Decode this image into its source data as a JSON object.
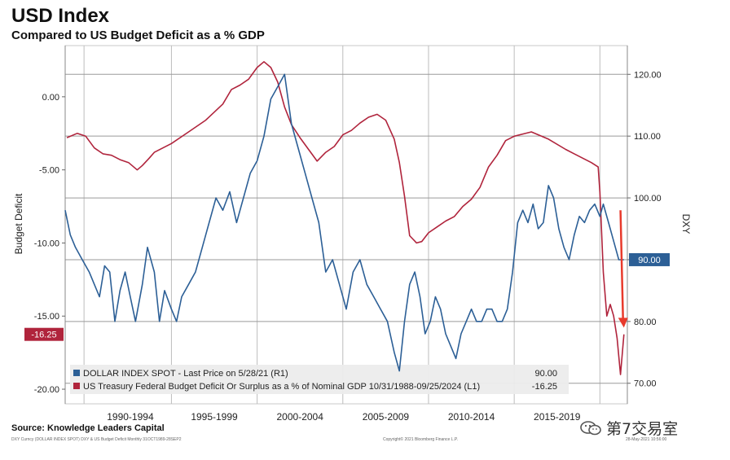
{
  "title": "USD Index",
  "subtitle": "Compared to US Budget Deficit as a % GDP",
  "source": "Source: Knowledge Leaders Capital",
  "footer_left": "DXY Curncy (DOLLAR INDEX SPOT) DXY & US Budget Deficit  Monthly 31OCT1989-28SEP2",
  "footer_center": "Copyright© 2021 Bloomberg Finance L.P.",
  "footer_right": "28-May-2021 10:56:00",
  "watermark": "第7交易室",
  "chart_data": {
    "type": "line",
    "xlim": [
      1988.8,
      2021.6
    ],
    "x_ticks": [
      {
        "label": "1990-1994",
        "x": 1992.6
      },
      {
        "label": "1995-1999",
        "x": 1997.5
      },
      {
        "label": "2000-2004",
        "x": 2002.5
      },
      {
        "label": "2005-2009",
        "x": 2007.5
      },
      {
        "label": "2010-2014",
        "x": 2012.5
      },
      {
        "label": "2015-2019",
        "x": 2017.5
      }
    ],
    "x_grid": [
      1989.9,
      1995.0,
      2000.0,
      2005.0,
      2010.0,
      2015.0,
      2020.0
    ],
    "left_axis": {
      "label": "Budget Deficit",
      "ylim": [
        -21,
        3.5
      ],
      "ticks": [
        {
          "value": 0,
          "label": "0.00"
        },
        {
          "value": -5,
          "label": "-5.00"
        },
        {
          "value": -10,
          "label": "-10.00"
        },
        {
          "value": -15,
          "label": "-15.00"
        },
        {
          "value": -20,
          "label": "-20.00"
        }
      ],
      "last_value_label": "-16.25",
      "last_value": -16.25
    },
    "right_axis": {
      "label": "DXY",
      "ylim": [
        66.67,
        124.65
      ],
      "ticks": [
        {
          "value": 120,
          "label": "120.00"
        },
        {
          "value": 110,
          "label": "110.00"
        },
        {
          "value": 100,
          "label": "100.00"
        },
        {
          "value": 90,
          "label": "90.00"
        },
        {
          "value": 80,
          "label": "80.00"
        },
        {
          "value": 70,
          "label": "70.00"
        }
      ],
      "last_value_label": "90.00",
      "last_value": 90
    },
    "series": [
      {
        "name": "US Treasury Federal Budget Deficit Or Surplus as a % of Nominal GDP 10/31/1988-09/25/2024 (L1)",
        "legend_value": "-16.25",
        "axis": "left",
        "color": "#b0243c",
        "x": [
          1988.9,
          1989.5,
          1990.0,
          1990.5,
          1991.0,
          1991.5,
          1992.0,
          1992.5,
          1993.0,
          1993.3,
          1993.7,
          1994.0,
          1995.0,
          1996.0,
          1997.0,
          1998.0,
          1998.5,
          1999.0,
          1999.5,
          2000.0,
          2000.4,
          2000.8,
          2001.2,
          2001.6,
          2002.0,
          2002.5,
          2003.0,
          2003.5,
          2004.0,
          2004.5,
          2005.0,
          2005.5,
          2006.0,
          2006.5,
          2007.0,
          2007.5,
          2008.0,
          2008.3,
          2008.6,
          2008.9,
          2009.3,
          2009.6,
          2010.0,
          2010.5,
          2011.0,
          2011.5,
          2012.0,
          2012.5,
          2013.0,
          2013.5,
          2014.0,
          2014.5,
          2015.0,
          2016.0,
          2017.0,
          2018.0,
          2018.5,
          2019.0,
          2019.5,
          2019.9,
          2020.0,
          2020.2,
          2020.4,
          2020.6,
          2020.8,
          2021.0,
          2021.2,
          2021.4
        ],
        "y": [
          -2.8,
          -2.5,
          -2.7,
          -3.5,
          -3.9,
          -4.0,
          -4.3,
          -4.5,
          -5.0,
          -4.7,
          -4.2,
          -3.8,
          -3.2,
          -2.4,
          -1.6,
          -0.5,
          0.5,
          0.8,
          1.2,
          2.0,
          2.4,
          2.0,
          1.0,
          -0.7,
          -1.9,
          -2.8,
          -3.6,
          -4.4,
          -3.8,
          -3.4,
          -2.6,
          -2.3,
          -1.8,
          -1.4,
          -1.2,
          -1.6,
          -2.9,
          -4.5,
          -6.8,
          -9.5,
          -10.0,
          -9.9,
          -9.3,
          -8.9,
          -8.5,
          -8.2,
          -7.5,
          -7.0,
          -6.2,
          -4.8,
          -4.0,
          -3.0,
          -2.7,
          -2.4,
          -2.9,
          -3.6,
          -3.9,
          -4.2,
          -4.5,
          -4.8,
          -6.5,
          -12.0,
          -15.0,
          -14.2,
          -15.0,
          -16.5,
          -19.0,
          -16.25
        ]
      },
      {
        "name": "DOLLAR INDEX SPOT - Last Price on 5/28/21 (R1)",
        "legend_value": "90.00",
        "axis": "right",
        "color": "#2c5f96",
        "x": [
          1988.8,
          1989.1,
          1989.4,
          1989.8,
          1990.2,
          1990.5,
          1990.8,
          1991.1,
          1991.4,
          1991.7,
          1992.0,
          1992.3,
          1992.6,
          1992.9,
          1993.3,
          1993.6,
          1994.0,
          1994.3,
          1994.6,
          1995.0,
          1995.3,
          1995.6,
          1996.0,
          1996.4,
          1996.8,
          1997.2,
          1997.6,
          1998.0,
          1998.4,
          1998.8,
          1999.2,
          1999.6,
          2000.0,
          2000.4,
          2000.8,
          2001.2,
          2001.6,
          2002.0,
          2002.4,
          2002.8,
          2003.2,
          2003.6,
          2004.0,
          2004.4,
          2004.8,
          2005.2,
          2005.6,
          2006.0,
          2006.4,
          2006.8,
          2007.2,
          2007.6,
          2008.0,
          2008.3,
          2008.6,
          2008.9,
          2009.2,
          2009.5,
          2009.8,
          2010.1,
          2010.4,
          2010.7,
          2011.0,
          2011.3,
          2011.6,
          2011.9,
          2012.2,
          2012.5,
          2012.8,
          2013.1,
          2013.4,
          2013.7,
          2014.0,
          2014.3,
          2014.6,
          2014.9,
          2015.2,
          2015.5,
          2015.8,
          2016.1,
          2016.4,
          2016.7,
          2017.0,
          2017.3,
          2017.6,
          2017.9,
          2018.2,
          2018.5,
          2018.8,
          2019.1,
          2019.4,
          2019.7,
          2020.0,
          2020.2,
          2020.5,
          2020.8,
          2021.1,
          2021.4
        ],
        "y": [
          98,
          94,
          92,
          90,
          88,
          86,
          84,
          89,
          88,
          80,
          85,
          88,
          84,
          80,
          86,
          92,
          88,
          80,
          85,
          82,
          80,
          84,
          86,
          88,
          92,
          96,
          100,
          98,
          101,
          96,
          100,
          104,
          106,
          110,
          116,
          118,
          120,
          112,
          108,
          104,
          100,
          96,
          88,
          90,
          86,
          82,
          88,
          90,
          86,
          84,
          82,
          80,
          75,
          72,
          80,
          86,
          88,
          84,
          78,
          80,
          84,
          82,
          78,
          76,
          74,
          78,
          80,
          82,
          80,
          80,
          82,
          82,
          80,
          80,
          82,
          88,
          96,
          98,
          96,
          99,
          95,
          96,
          102,
          100,
          95,
          92,
          90,
          94,
          97,
          96,
          98,
          99,
          97,
          99,
          96,
          93,
          90,
          90
        ]
      }
    ],
    "legend_placement": "bottom-left",
    "grid": true,
    "arrow": {
      "color": "#e83a2c",
      "x_from": 2021.2,
      "y_from_right": 98,
      "x_to": 2021.35,
      "y_to_right": 79
    }
  }
}
